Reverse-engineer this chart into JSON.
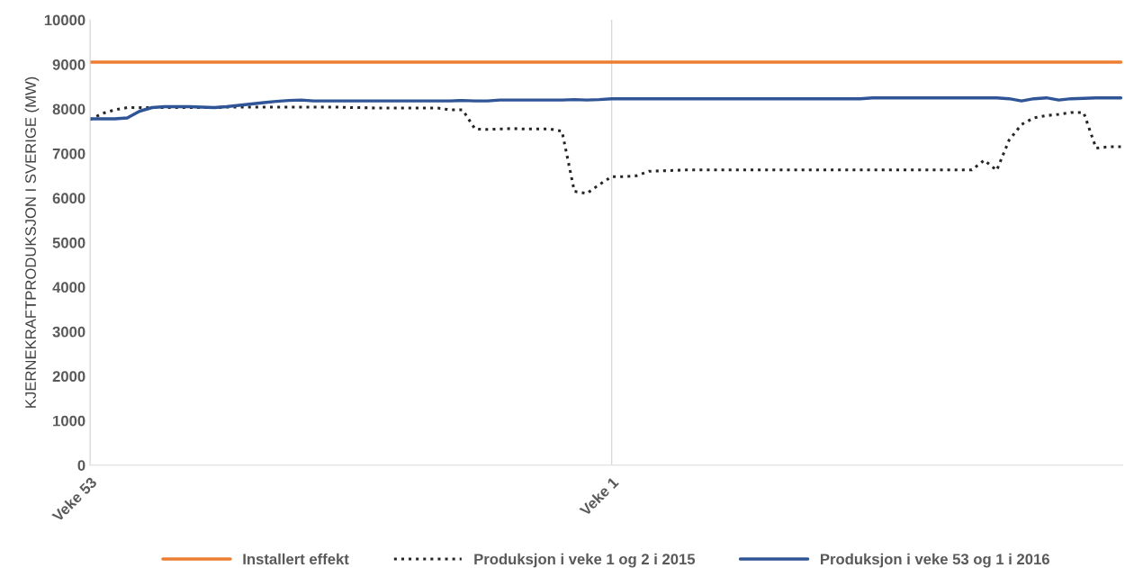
{
  "chart_data": {
    "type": "line",
    "ylabel": "KJERNEKRAFTPRODUKSJON I SVERIGE (MW)",
    "categories": [
      "Veke 53",
      null,
      null,
      null,
      null,
      null,
      null,
      null,
      null,
      null,
      null,
      null,
      null,
      null,
      null,
      null,
      null,
      null,
      null,
      null,
      null,
      null,
      null,
      null,
      null,
      null,
      null,
      null,
      null,
      null,
      null,
      null,
      null,
      null,
      null,
      null,
      null,
      null,
      null,
      null,
      null,
      null,
      "Veke 1",
      null,
      null,
      null,
      null,
      null,
      null,
      null,
      null,
      null,
      null,
      null,
      null,
      null,
      null,
      null,
      null,
      null,
      null,
      null,
      null,
      null,
      null,
      null,
      null,
      null,
      null,
      null,
      null,
      null,
      null,
      null,
      null,
      null,
      null,
      null,
      null,
      null,
      null,
      null,
      null,
      null
    ],
    "series": [
      {
        "name": "Installert effekt",
        "color": "#ed7d31",
        "line_style": "solid",
        "values": [
          9050,
          9050,
          9050,
          9050,
          9050,
          9050,
          9050,
          9050,
          9050,
          9050,
          9050,
          9050,
          9050,
          9050,
          9050,
          9050,
          9050,
          9050,
          9050,
          9050,
          9050,
          9050,
          9050,
          9050,
          9050,
          9050,
          9050,
          9050,
          9050,
          9050,
          9050,
          9050,
          9050,
          9050,
          9050,
          9050,
          9050,
          9050,
          9050,
          9050,
          9050,
          9050,
          9050,
          9050,
          9050,
          9050,
          9050,
          9050,
          9050,
          9050,
          9050,
          9050,
          9050,
          9050,
          9050,
          9050,
          9050,
          9050,
          9050,
          9050,
          9050,
          9050,
          9050,
          9050,
          9050,
          9050,
          9050,
          9050,
          9050,
          9050,
          9050,
          9050,
          9050,
          9050,
          9050,
          9050,
          9050,
          9050,
          9050,
          9050,
          9050,
          9050,
          9050,
          9050
        ]
      },
      {
        "name": "Produksjon i veke 1 og 2 i 2015",
        "color": "#262626",
        "line_style": "dotted",
        "values": [
          7760,
          7900,
          7980,
          8030,
          8030,
          8030,
          8030,
          8030,
          8030,
          8030,
          8030,
          8040,
          8040,
          8040,
          8040,
          8040,
          8040,
          8040,
          8040,
          8040,
          8040,
          8030,
          8030,
          8020,
          8020,
          8020,
          8020,
          8020,
          8020,
          7980,
          7980,
          7550,
          7540,
          7550,
          7560,
          7550,
          7550,
          7550,
          7500,
          6150,
          6100,
          6300,
          6480,
          6480,
          6500,
          6600,
          6610,
          6620,
          6630,
          6630,
          6630,
          6630,
          6630,
          6630,
          6630,
          6630,
          6630,
          6630,
          6630,
          6630,
          6630,
          6630,
          6630,
          6630,
          6630,
          6630,
          6630,
          6630,
          6630,
          6630,
          6630,
          6630,
          6850,
          6620,
          7300,
          7650,
          7800,
          7850,
          7880,
          7920,
          7920,
          7120,
          7150,
          7150
        ]
      },
      {
        "name": "Produksjon i veke 53 og 1 i 2016",
        "color": "#2f5597",
        "line_style": "solid",
        "values": [
          7780,
          7780,
          7780,
          7800,
          7950,
          8030,
          8050,
          8050,
          8050,
          8040,
          8030,
          8050,
          8080,
          8110,
          8140,
          8170,
          8190,
          8200,
          8180,
          8180,
          8180,
          8180,
          8180,
          8180,
          8180,
          8180,
          8180,
          8180,
          8180,
          8180,
          8190,
          8180,
          8180,
          8200,
          8200,
          8200,
          8200,
          8200,
          8200,
          8210,
          8200,
          8210,
          8230,
          8230,
          8230,
          8230,
          8230,
          8230,
          8230,
          8230,
          8230,
          8230,
          8230,
          8230,
          8230,
          8230,
          8230,
          8230,
          8230,
          8230,
          8230,
          8230,
          8230,
          8250,
          8250,
          8250,
          8250,
          8250,
          8250,
          8250,
          8250,
          8250,
          8250,
          8250,
          8230,
          8180,
          8230,
          8250,
          8200,
          8230,
          8240,
          8250,
          8250,
          8250
        ]
      }
    ],
    "ylim": [
      0,
      10000
    ],
    "yticks": [
      0,
      1000,
      2000,
      3000,
      4000,
      5000,
      6000,
      7000,
      8000,
      9000,
      10000
    ],
    "grid": "x",
    "legend": "bottom"
  }
}
